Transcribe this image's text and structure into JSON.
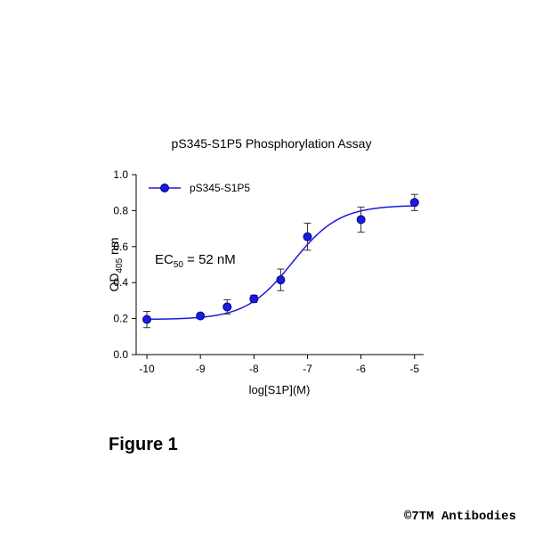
{
  "chart_data": {
    "type": "dose-response",
    "title": "pS345-S1P5 Phosphorylation Assay",
    "x_label": "log[S1P](M)",
    "y_label": [
      "OD",
      "405",
      " nm"
    ],
    "annotation": [
      "EC",
      "50",
      " = 52 nM"
    ],
    "x": [
      -10,
      -9,
      -8.5,
      -8,
      -7.5,
      -7,
      -6,
      -5
    ],
    "series": [
      {
        "name": "pS345-S1P5",
        "color": "#1a1ae0",
        "values": [
          0.195,
          0.215,
          0.265,
          0.31,
          0.415,
          0.655,
          0.75,
          0.845
        ],
        "errors": [
          0.045,
          0.01,
          0.04,
          0.02,
          0.06,
          0.075,
          0.07,
          0.045
        ]
      }
    ],
    "fit": {
      "bottom": 0.195,
      "top": 0.83,
      "log_ec50": -7.28,
      "hill": 1
    },
    "xlim": [
      -10.2,
      -4.83
    ],
    "ylim": [
      0,
      1
    ],
    "xticks": [
      -10,
      -9,
      -8,
      -7,
      -6,
      -5
    ],
    "yticks": [
      {
        "value": 0,
        "label": "0.0"
      },
      0.2,
      0.4,
      0.6,
      0.8,
      {
        "value": 1,
        "label": "1.0"
      }
    ],
    "legend": "top-left",
    "figure_label": "Figure 1",
    "credit": "©7TM Antibodies"
  }
}
